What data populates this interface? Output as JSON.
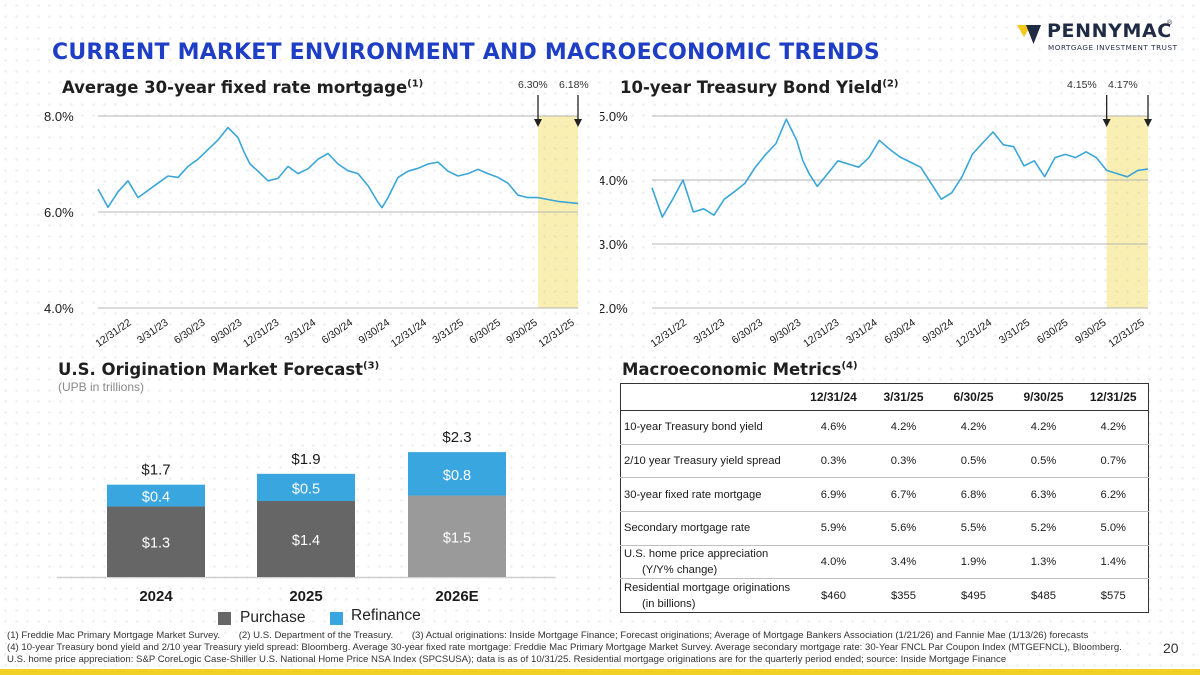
{
  "slide": {
    "title": "CURRENT MARKET ENVIRONMENT AND MACROECONOMIC TRENDS",
    "page_number": "20",
    "accent_color": "#1f3ec6",
    "highlight_color": "#f2d126"
  },
  "logo": {
    "name": "PENNYMAC",
    "registered_mark": "®",
    "tagline": "MORTGAGE INVESTMENT TRUST"
  },
  "mortgage_chart": {
    "title": "Average 30-year fixed rate mortgage",
    "note": "(1)",
    "annotations": [
      "6.30%",
      "6.18%"
    ]
  },
  "treasury_chart": {
    "title": "10-year Treasury Bond Yield",
    "note": "(2)",
    "annotations": [
      "4.15%",
      "4.17%"
    ]
  },
  "forecast_chart": {
    "title": "U.S. Origination Market Forecast",
    "note": "(3)",
    "subtitle": "(UPB in trillions)",
    "legend": {
      "purchase": "Purchase",
      "refinance": "Refinance"
    }
  },
  "macro": {
    "title": "Macroeconomic Metrics",
    "note": "(4)",
    "columns": [
      "12/31/24",
      "3/31/25",
      "6/30/25",
      "9/30/25",
      "12/31/25"
    ],
    "rows": [
      {
        "label": "10-year Treasury bond yield",
        "sublabel": "",
        "values": [
          "4.6%",
          "4.2%",
          "4.2%",
          "4.2%",
          "4.2%"
        ]
      },
      {
        "label": "2/10 year Treasury yield spread",
        "sublabel": "",
        "values": [
          "0.3%",
          "0.3%",
          "0.5%",
          "0.5%",
          "0.7%"
        ]
      },
      {
        "label": "30-year fixed rate mortgage",
        "sublabel": "",
        "values": [
          "6.9%",
          "6.7%",
          "6.8%",
          "6.3%",
          "6.2%"
        ]
      },
      {
        "label": "Secondary mortgage rate",
        "sublabel": "",
        "values": [
          "5.9%",
          "5.6%",
          "5.5%",
          "5.2%",
          "5.0%"
        ]
      },
      {
        "label": "U.S. home price appreciation",
        "sublabel": "(Y/Y% change)",
        "values": [
          "4.0%",
          "3.4%",
          "1.9%",
          "1.3%",
          "1.4%"
        ]
      },
      {
        "label": "Residential mortgage originations",
        "sublabel": "(in billions)",
        "values": [
          "$460",
          "$355",
          "$495",
          "$485",
          "$575"
        ]
      }
    ]
  },
  "footnotes": [
    "(1) Freddie Mac Primary Mortgage Market Survey.       (2) U.S. Department of the Treasury.       (3) Actual originations: Inside Mortgage Finance; Forecast originations; Average of Mortgage Bankers Association (1/21/26) and Fannie Mae (1/13/26) forecasts",
    "(4) 10-year Treasury bond yield and 2/10 year Treasury yield spread: Bloomberg. Average 30-year fixed rate mortgage: Freddie Mac Primary Mortgage Market Survey. Average secondary mortgage rate: 30-Year FNCL Par Coupon Index (MTGEFNCL), Bloomberg.",
    "U.S. home price appreciation: S&P CoreLogic Case-Shiller U.S. National Home Price NSA Index (SPCSUSA); data is as of 10/31/25. Residential mortgage originations are for the quarterly period ended; source: Inside Mortgage Finance"
  ],
  "chart_data": [
    {
      "type": "line",
      "title": "Average 30-year fixed rate mortgage",
      "ylabel": "",
      "ylim": [
        4.0,
        8.0
      ],
      "yticks": [
        "4.0%",
        "6.0%",
        "8.0%"
      ],
      "yticks_values": [
        4.0,
        6.0,
        8.0
      ],
      "xlim": [
        0,
        12
      ],
      "xticks": [
        "12/31/22",
        "3/31/23",
        "6/30/23",
        "9/30/23",
        "12/31/23",
        "3/31/24",
        "6/30/24",
        "9/30/24",
        "12/31/24",
        "3/31/25",
        "6/30/25",
        "9/30/25",
        "12/31/25"
      ],
      "highlight_range": [
        11,
        12
      ],
      "line_color": "#3aa6d8",
      "series": [
        {
          "name": "30-year fixed rate mortgage (%)",
          "x": [
            0,
            0.25,
            0.5,
            0.75,
            1.0,
            1.25,
            1.5,
            1.75,
            2.0,
            2.25,
            2.5,
            2.75,
            3.0,
            3.25,
            3.5,
            3.65,
            3.8,
            4.0,
            4.25,
            4.5,
            4.75,
            5.0,
            5.25,
            5.5,
            5.75,
            6.0,
            6.25,
            6.5,
            6.75,
            7.0,
            7.1,
            7.25,
            7.5,
            7.75,
            8.0,
            8.25,
            8.5,
            8.75,
            9.0,
            9.25,
            9.5,
            9.75,
            10.0,
            10.25,
            10.5,
            10.75,
            11.0,
            11.25,
            11.5,
            11.75,
            12.0
          ],
          "values": [
            6.48,
            6.1,
            6.42,
            6.65,
            6.3,
            6.45,
            6.6,
            6.75,
            6.72,
            6.95,
            7.1,
            7.3,
            7.5,
            7.76,
            7.55,
            7.25,
            7.0,
            6.85,
            6.65,
            6.7,
            6.95,
            6.8,
            6.9,
            7.1,
            7.22,
            7.0,
            6.86,
            6.8,
            6.55,
            6.2,
            6.09,
            6.3,
            6.72,
            6.85,
            6.91,
            7.0,
            7.04,
            6.85,
            6.75,
            6.8,
            6.89,
            6.8,
            6.72,
            6.6,
            6.35,
            6.3,
            6.3,
            6.26,
            6.22,
            6.2,
            6.18
          ]
        }
      ]
    },
    {
      "type": "line",
      "title": "10-year Treasury Bond Yield",
      "ylabel": "",
      "ylim": [
        2.0,
        5.0
      ],
      "yticks": [
        "2.0%",
        "3.0%",
        "4.0%",
        "5.0%"
      ],
      "yticks_values": [
        2.0,
        3.0,
        4.0,
        5.0
      ],
      "xlim": [
        0,
        12
      ],
      "xticks": [
        "12/31/22",
        "3/31/23",
        "6/30/23",
        "9/30/23",
        "12/31/23",
        "3/31/24",
        "6/30/24",
        "9/30/24",
        "12/31/24",
        "3/31/25",
        "6/30/25",
        "9/30/25",
        "12/31/25"
      ],
      "highlight_range": [
        11,
        12
      ],
      "line_color": "#3aa6d8",
      "series": [
        {
          "name": "10-year Treasury yield (%)",
          "x": [
            0,
            0.25,
            0.5,
            0.75,
            1.0,
            1.25,
            1.5,
            1.75,
            2.0,
            2.25,
            2.5,
            2.75,
            3.0,
            3.25,
            3.5,
            3.65,
            3.8,
            4.0,
            4.25,
            4.5,
            4.75,
            5.0,
            5.25,
            5.5,
            5.75,
            6.0,
            6.25,
            6.5,
            6.75,
            7.0,
            7.25,
            7.5,
            7.75,
            8.0,
            8.25,
            8.5,
            8.75,
            9.0,
            9.25,
            9.5,
            9.75,
            10.0,
            10.25,
            10.5,
            10.75,
            11.0,
            11.25,
            11.5,
            11.75,
            12.0
          ],
          "values": [
            3.88,
            3.42,
            3.7,
            4.0,
            3.5,
            3.55,
            3.45,
            3.7,
            3.82,
            3.95,
            4.2,
            4.4,
            4.57,
            4.95,
            4.62,
            4.3,
            4.1,
            3.9,
            4.1,
            4.3,
            4.25,
            4.2,
            4.35,
            4.62,
            4.48,
            4.36,
            4.28,
            4.2,
            3.95,
            3.7,
            3.8,
            4.05,
            4.4,
            4.58,
            4.75,
            4.55,
            4.52,
            4.22,
            4.3,
            4.05,
            4.35,
            4.4,
            4.35,
            4.44,
            4.35,
            4.15,
            4.1,
            4.05,
            4.15,
            4.17
          ]
        }
      ]
    },
    {
      "type": "bar",
      "stacked": true,
      "title": "U.S. Origination Market Forecast",
      "subtitle": "(UPB in trillions)",
      "categories": [
        "2024",
        "2025",
        "2026E"
      ],
      "ylim": [
        0,
        2.5
      ],
      "series": [
        {
          "name": "Purchase",
          "color": "#666666",
          "values": [
            1.3,
            1.4,
            1.5
          ],
          "labels": [
            "$1.3",
            "$1.4",
            "$1.5"
          ]
        },
        {
          "name": "Refinance",
          "color": "#3aa6e0",
          "values": [
            0.4,
            0.5,
            0.8
          ],
          "labels": [
            "$0.4",
            "$0.5",
            "$0.8"
          ]
        }
      ],
      "totals": [
        1.7,
        1.9,
        2.3
      ],
      "total_labels": [
        "$1.7",
        "$1.9",
        "$2.3"
      ]
    }
  ]
}
